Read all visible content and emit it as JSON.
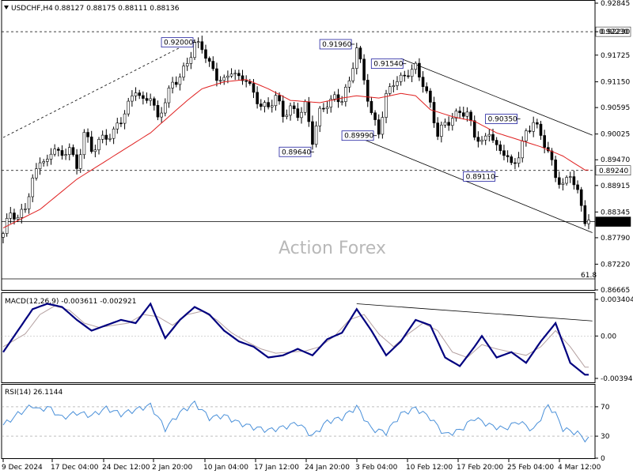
{
  "header": {
    "symbol": "USDCHF,H4",
    "ohlc": "0.88127 0.88175 0.88111 0.88136",
    "macd": "MACD(12,26,9) -0.003611 -0.002921",
    "rsi": "RSI(14) 26.1144"
  },
  "watermark": "Action Forex",
  "fib_label": "61.8",
  "colors": {
    "candle": "#000000",
    "ma": "#e02020",
    "macd_main": "#00007f",
    "macd_signal": "#b4a0a0",
    "rsi": "#4a90d9",
    "label_border": "#1f1f9f",
    "last_price_bg": "#000000",
    "last_price_fg": "#ffffff"
  },
  "chart_data": {
    "type": "candlestick",
    "symbol": "USDCHF",
    "timeframe": "H4",
    "main_ylim": [
      0.86665,
      0.92845
    ],
    "y_ticks": [
      "0.92845",
      "0.92230",
      "0.91725",
      "0.91150",
      "0.90595",
      "0.90025",
      "0.89470",
      "0.88915",
      "0.88345",
      "0.87790",
      "0.87220",
      "0.86665"
    ],
    "x_ticks": [
      "9 Dec 2024",
      "17 Dec 04:00",
      "24 Dec 12:00",
      "2 Jan 20:00",
      "10 Jan 04:00",
      "17 Jan 12:00",
      "24 Jan 20:00",
      "3 Feb 04:00",
      "10 Feb 12:00",
      "17 Feb 20:00",
      "25 Feb 04:00",
      "4 Mar 12:00"
    ],
    "close_path": [
      [
        0,
        0.8788
      ],
      [
        2,
        0.883
      ],
      [
        4,
        0.8815
      ],
      [
        6,
        0.885
      ],
      [
        8,
        0.8905
      ],
      [
        10,
        0.895
      ],
      [
        12,
        0.8935
      ],
      [
        14,
        0.8975
      ],
      [
        16,
        0.895
      ],
      [
        18,
        0.8985
      ],
      [
        20,
        0.8925
      ],
      [
        22,
        0.9005
      ],
      [
        24,
        0.896
      ],
      [
        26,
        0.899
      ],
      [
        28,
        0.9
      ],
      [
        30,
        0.901
      ],
      [
        32,
        0.903
      ],
      [
        34,
        0.906
      ],
      [
        36,
        0.91
      ],
      [
        38,
        0.9075
      ],
      [
        40,
        0.909
      ],
      [
        42,
        0.903
      ],
      [
        44,
        0.907
      ],
      [
        46,
        0.911
      ],
      [
        48,
        0.913
      ],
      [
        50,
        0.916
      ],
      [
        52,
        0.9195
      ],
      [
        54,
        0.9185
      ],
      [
        56,
        0.915
      ],
      [
        58,
        0.913
      ],
      [
        60,
        0.912
      ],
      [
        62,
        0.914
      ],
      [
        64,
        0.9115
      ],
      [
        66,
        0.912
      ],
      [
        68,
        0.909
      ],
      [
        70,
        0.907
      ],
      [
        72,
        0.906
      ],
      [
        74,
        0.908
      ],
      [
        76,
        0.904
      ],
      [
        78,
        0.906
      ],
      [
        80,
        0.905
      ],
      [
        82,
        0.9065
      ],
      [
        84,
        0.8985
      ],
      [
        86,
        0.9045
      ],
      [
        88,
        0.907
      ],
      [
        90,
        0.9085
      ],
      [
        92,
        0.908
      ],
      [
        94,
        0.911
      ],
      [
        96,
        0.9185
      ],
      [
        98,
        0.912
      ],
      [
        100,
        0.905
      ],
      [
        102,
        0.901
      ],
      [
        104,
        0.908
      ],
      [
        106,
        0.911
      ],
      [
        108,
        0.912
      ],
      [
        110,
        0.914
      ],
      [
        112,
        0.915
      ],
      [
        114,
        0.911
      ],
      [
        116,
        0.906
      ],
      [
        118,
        0.9
      ],
      [
        120,
        0.903
      ],
      [
        122,
        0.904
      ],
      [
        124,
        0.905
      ],
      [
        126,
        0.904
      ],
      [
        128,
        0.9
      ],
      [
        130,
        0.8985
      ],
      [
        132,
        0.9015
      ],
      [
        134,
        0.897
      ],
      [
        136,
        0.896
      ],
      [
        138,
        0.893
      ],
      [
        140,
        0.896
      ],
      [
        142,
        0.901
      ],
      [
        144,
        0.903
      ],
      [
        146,
        0.8995
      ],
      [
        148,
        0.896
      ],
      [
        150,
        0.8915
      ],
      [
        152,
        0.8895
      ],
      [
        154,
        0.892
      ],
      [
        156,
        0.887
      ],
      [
        158,
        0.8814
      ]
    ],
    "n_bars": 160,
    "moving_average": [
      [
        0,
        0.88
      ],
      [
        10,
        0.884
      ],
      [
        20,
        0.8905
      ],
      [
        30,
        0.8955
      ],
      [
        40,
        0.9005
      ],
      [
        50,
        0.9075
      ],
      [
        54,
        0.91
      ],
      [
        60,
        0.9115
      ],
      [
        66,
        0.912
      ],
      [
        72,
        0.91
      ],
      [
        78,
        0.9075
      ],
      [
        86,
        0.907
      ],
      [
        92,
        0.908
      ],
      [
        96,
        0.9085
      ],
      [
        102,
        0.908
      ],
      [
        108,
        0.909
      ],
      [
        112,
        0.9085
      ],
      [
        116,
        0.9055
      ],
      [
        122,
        0.904
      ],
      [
        128,
        0.903
      ],
      [
        134,
        0.9005
      ],
      [
        140,
        0.899
      ],
      [
        146,
        0.8975
      ],
      [
        152,
        0.8955
      ],
      [
        158,
        0.8925
      ]
    ],
    "price_labels": [
      {
        "text": "0.92000",
        "i": 52,
        "v": 0.92
      },
      {
        "text": "0.91960",
        "i": 95,
        "v": 0.9196
      },
      {
        "text": "0.91540",
        "i": 109,
        "v": 0.9154
      },
      {
        "text": "0.89640",
        "i": 84,
        "v": 0.8964
      },
      {
        "text": "0.89990",
        "i": 101,
        "v": 0.8999
      },
      {
        "text": "0.90350",
        "i": 140,
        "v": 0.9035
      },
      {
        "text": "0.89110",
        "i": 134,
        "v": 0.8911
      }
    ],
    "horizontal_levels": [
      {
        "value": 0.9223,
        "label": "0.92230",
        "style": "dashed"
      },
      {
        "value": 0.8924,
        "label": "0.89240",
        "style": "dashed"
      },
      {
        "value": 0.88136,
        "label": "0.88136",
        "style": "solid",
        "current": true
      }
    ],
    "trendlines": [
      {
        "name": "rising",
        "from": [
          0,
          0.8995
        ],
        "to": [
          52,
          0.9205
        ],
        "style": "dashed"
      },
      {
        "name": "channel-top",
        "from": [
          108,
          0.9165
        ],
        "to": [
          160,
          0.9
        ],
        "style": "solid"
      },
      {
        "name": "channel-bottom",
        "from": [
          95,
          0.9
        ],
        "to": [
          160,
          0.879
        ],
        "style": "solid"
      }
    ],
    "macd": {
      "ylim": [
        -0.003945,
        0.003404
      ],
      "y_ticks": [
        "0.003404",
        "0.00",
        "-0.003945"
      ],
      "main": [
        [
          0,
          -0.0015
        ],
        [
          4,
          0.0005
        ],
        [
          8,
          0.0025
        ],
        [
          12,
          0.003
        ],
        [
          16,
          0.0027
        ],
        [
          20,
          0.0015
        ],
        [
          24,
          0.0005
        ],
        [
          28,
          0.001
        ],
        [
          32,
          0.0015
        ],
        [
          36,
          0.0012
        ],
        [
          40,
          0.003
        ],
        [
          44,
          -0.0002
        ],
        [
          48,
          0.0015
        ],
        [
          52,
          0.0027
        ],
        [
          56,
          0.002
        ],
        [
          60,
          0.0005
        ],
        [
          64,
          -0.0005
        ],
        [
          68,
          -0.001
        ],
        [
          72,
          -0.002
        ],
        [
          76,
          -0.0018
        ],
        [
          80,
          -0.0012
        ],
        [
          84,
          -0.0018
        ],
        [
          88,
          -0.0003
        ],
        [
          92,
          0.0003
        ],
        [
          96,
          0.0025
        ],
        [
          100,
          0.0005
        ],
        [
          104,
          -0.0018
        ],
        [
          108,
          -0.0005
        ],
        [
          112,
          0.0015
        ],
        [
          116,
          0.001
        ],
        [
          120,
          -0.002
        ],
        [
          124,
          -0.0028
        ],
        [
          128,
          -0.001
        ],
        [
          130,
          0.0
        ],
        [
          134,
          -0.002
        ],
        [
          138,
          -0.0015
        ],
        [
          142,
          -0.0025
        ],
        [
          146,
          -0.0005
        ],
        [
          150,
          0.0012
        ],
        [
          154,
          -0.0025
        ],
        [
          158,
          -0.0036
        ]
      ],
      "signal": [
        [
          0,
          -0.001
        ],
        [
          6,
          0.0002
        ],
        [
          10,
          0.002
        ],
        [
          14,
          0.0028
        ],
        [
          18,
          0.0024
        ],
        [
          22,
          0.0012
        ],
        [
          26,
          0.0008
        ],
        [
          30,
          0.001
        ],
        [
          34,
          0.0012
        ],
        [
          38,
          0.002
        ],
        [
          42,
          0.0018
        ],
        [
          46,
          0.001
        ],
        [
          50,
          0.002
        ],
        [
          54,
          0.0023
        ],
        [
          58,
          0.0015
        ],
        [
          62,
          0.0003
        ],
        [
          66,
          -0.0005
        ],
        [
          70,
          -0.0012
        ],
        [
          74,
          -0.0016
        ],
        [
          78,
          -0.0015
        ],
        [
          82,
          -0.0014
        ],
        [
          86,
          -0.001
        ],
        [
          90,
          0.0
        ],
        [
          94,
          0.0015
        ],
        [
          98,
          0.002
        ],
        [
          102,
          0.0002
        ],
        [
          106,
          -0.001
        ],
        [
          110,
          0.0002
        ],
        [
          114,
          0.0012
        ],
        [
          118,
          0.0005
        ],
        [
          122,
          -0.0015
        ],
        [
          126,
          -0.002
        ],
        [
          130,
          -0.0008
        ],
        [
          134,
          -0.0012
        ],
        [
          138,
          -0.0015
        ],
        [
          142,
          -0.0018
        ],
        [
          146,
          -0.001
        ],
        [
          150,
          0.0005
        ],
        [
          154,
          -0.001
        ],
        [
          158,
          -0.0029
        ]
      ],
      "trendline": {
        "from": [
          96,
          0.003
        ],
        "to": [
          160,
          0.0014
        ]
      }
    },
    "rsi": {
      "ylim": [
        0,
        100
      ],
      "y_ticks": [
        "100",
        "70",
        "30",
        "0"
      ],
      "levels": [
        70,
        30
      ],
      "series": [
        [
          0,
          45
        ],
        [
          4,
          60
        ],
        [
          8,
          72
        ],
        [
          10,
          65
        ],
        [
          12,
          70
        ],
        [
          16,
          55
        ],
        [
          20,
          62
        ],
        [
          24,
          58
        ],
        [
          28,
          68
        ],
        [
          32,
          60
        ],
        [
          36,
          66
        ],
        [
          40,
          72
        ],
        [
          44,
          40
        ],
        [
          48,
          62
        ],
        [
          52,
          75
        ],
        [
          56,
          55
        ],
        [
          60,
          58
        ],
        [
          64,
          48
        ],
        [
          68,
          42
        ],
        [
          72,
          38
        ],
        [
          76,
          42
        ],
        [
          80,
          48
        ],
        [
          84,
          30
        ],
        [
          88,
          50
        ],
        [
          92,
          55
        ],
        [
          96,
          70
        ],
        [
          100,
          40
        ],
        [
          104,
          35
        ],
        [
          108,
          60
        ],
        [
          112,
          68
        ],
        [
          116,
          55
        ],
        [
          120,
          32
        ],
        [
          124,
          38
        ],
        [
          128,
          55
        ],
        [
          132,
          45
        ],
        [
          136,
          40
        ],
        [
          140,
          50
        ],
        [
          144,
          38
        ],
        [
          148,
          72
        ],
        [
          150,
          60
        ],
        [
          152,
          40
        ],
        [
          156,
          34
        ],
        [
          158,
          26
        ]
      ]
    }
  }
}
